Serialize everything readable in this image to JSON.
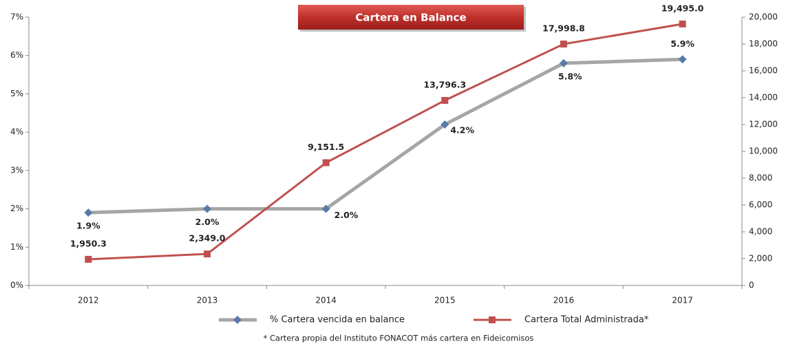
{
  "chart_data": {
    "type": "line",
    "title": "Cartera en Balance",
    "footnote": "* Cartera propia del Instituto FONACOT más cartera en Fideicomisos",
    "categories": [
      "2012",
      "2013",
      "2014",
      "2015",
      "2016",
      "2017"
    ],
    "series": [
      {
        "name": "% Cartera vencida en balance",
        "color": "#a6a6a6",
        "marker_color": "#5a7aa8",
        "marker": "diamond",
        "values": [
          1.9,
          2.0,
          2.0,
          4.2,
          5.8,
          5.9
        ],
        "value_labels": [
          "1.9%",
          "2.0%",
          "2.0%",
          "4.2%",
          "5.8%",
          "5.9%"
        ]
      },
      {
        "name": "Cartera Total Administrada*",
        "color": "#c0504d",
        "marker_color": "#c0504d",
        "marker": "square",
        "axis": "y2",
        "values": [
          1950.3,
          2349.0,
          9151.5,
          13796.3,
          17998.8,
          19495.0
        ],
        "value_labels": [
          "1,950.3",
          "2,349.0",
          "9,151.5",
          "13,796.3",
          "17,998.8",
          "19,495.0"
        ]
      }
    ],
    "ylim": [
      0,
      7
    ],
    "yticks": [
      {
        "value": 0,
        "label": "0%"
      },
      {
        "value": 1,
        "label": "1%"
      },
      {
        "value": 2,
        "label": "2%"
      },
      {
        "value": 3,
        "label": "3%"
      },
      {
        "value": 4,
        "label": "4%"
      },
      {
        "value": 5,
        "label": "5%"
      },
      {
        "value": 6,
        "label": "6%"
      },
      {
        "value": 7,
        "label": "7%"
      }
    ],
    "y2lim": [
      0,
      20000
    ],
    "y2ticks": [
      0,
      {
        "value": 2000,
        "label": "2,000"
      },
      {
        "value": 4000,
        "label": "4,000"
      },
      {
        "value": 6000,
        "label": "6,000"
      },
      {
        "value": 8000,
        "label": "8,000"
      },
      {
        "value": 10000,
        "label": "10,000"
      },
      {
        "value": 12000,
        "label": "12,000"
      },
      {
        "value": 14000,
        "label": "14,000"
      },
      {
        "value": 16000,
        "label": "16,000"
      },
      {
        "value": 18000,
        "label": "18,000"
      },
      {
        "value": 20000,
        "label": "20,000"
      }
    ],
    "grid": false,
    "legend": "bottom"
  }
}
